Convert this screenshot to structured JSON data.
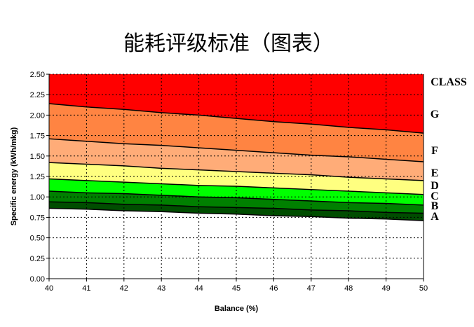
{
  "chart_data": {
    "type": "area",
    "title": "能耗评级标准（图表）",
    "xlabel": "Balance (%)",
    "ylabel": "Specific energy (kWh/mkg)",
    "x": [
      40,
      41,
      42,
      43,
      44,
      45,
      46,
      47,
      48,
      49,
      50
    ],
    "xlim": [
      40,
      50
    ],
    "ylim": [
      0,
      2.5
    ],
    "yticks": [
      "0.00",
      "0.25",
      "0.50",
      "0.75",
      "1.00",
      "1.25",
      "1.50",
      "1.75",
      "2.00",
      "2.25",
      "2.50"
    ],
    "xticks": [
      "40",
      "41",
      "42",
      "43",
      "44",
      "45",
      "46",
      "47",
      "48",
      "49",
      "50"
    ],
    "grid": true,
    "class_header": "CLASS",
    "class_header_color": "#e00000",
    "bands": [
      {
        "label": "G",
        "color": "#ff0000",
        "lower": [
          2.14,
          2.1,
          2.07,
          2.03,
          2.0,
          1.96,
          1.92,
          1.89,
          1.85,
          1.82,
          1.78
        ]
      },
      {
        "label": "F",
        "color": "#ff8442",
        "lower": [
          1.71,
          1.68,
          1.65,
          1.63,
          1.6,
          1.57,
          1.54,
          1.51,
          1.49,
          1.46,
          1.43
        ]
      },
      {
        "label": "E",
        "color": "#ffac78",
        "lower": [
          1.42,
          1.4,
          1.38,
          1.35,
          1.33,
          1.31,
          1.29,
          1.27,
          1.24,
          1.22,
          1.2
        ]
      },
      {
        "label": "D",
        "color": "#ffff80",
        "lower": [
          1.22,
          1.2,
          1.18,
          1.16,
          1.14,
          1.13,
          1.11,
          1.09,
          1.07,
          1.05,
          1.03
        ]
      },
      {
        "label": "C",
        "color": "#00ff00",
        "lower": [
          1.07,
          1.05,
          1.04,
          1.02,
          1.0,
          0.99,
          0.97,
          0.95,
          0.93,
          0.92,
          0.9
        ]
      },
      {
        "label": "B",
        "color": "#008000",
        "lower": [
          0.94,
          0.93,
          0.91,
          0.9,
          0.88,
          0.87,
          0.86,
          0.84,
          0.83,
          0.81,
          0.8
        ]
      },
      {
        "label": "A",
        "color": "#004d00",
        "lower": [
          0.86,
          0.85,
          0.83,
          0.82,
          0.8,
          0.79,
          0.77,
          0.76,
          0.74,
          0.73,
          0.71
        ]
      }
    ]
  }
}
